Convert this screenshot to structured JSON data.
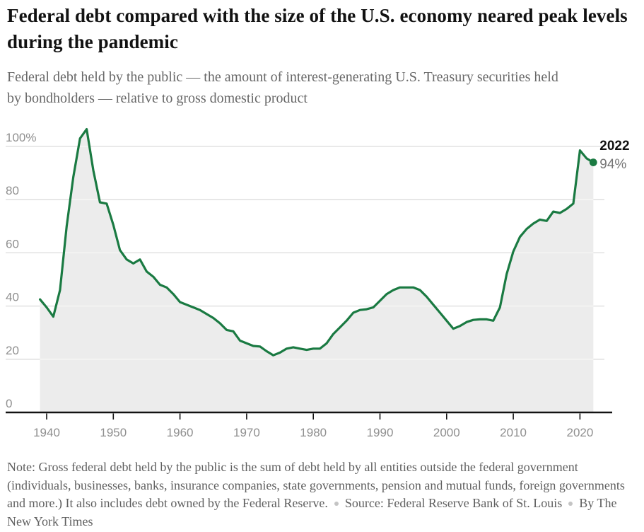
{
  "header": {
    "title": "Federal debt compared with the size of the U.S. economy neared peak levels during the pandemic",
    "subtitle": "Federal debt held by the public — the amount of interest-generating U.S. Treasury securities held by bondholders — relative to gross domestic product"
  },
  "footer": {
    "note": "Note: Gross federal debt held by the public is the sum of debt held by all entities outside the federal government (individuals, businesses, banks, insurance companies, state governments, pension and mutual funds, foreign governments and more.) It also includes debt owned by the Federal Reserve.",
    "source": "Source: Federal Reserve Bank of St. Louis",
    "byline": "By The New York Times"
  },
  "chart_data": {
    "type": "area",
    "series_name": "Federal debt held by the public as a share of gross domestic product (%)",
    "years": [
      1939,
      1940,
      1941,
      1942,
      1943,
      1944,
      1945,
      1946,
      1947,
      1948,
      1949,
      1950,
      1951,
      1952,
      1953,
      1954,
      1955,
      1956,
      1957,
      1958,
      1959,
      1960,
      1961,
      1962,
      1963,
      1964,
      1965,
      1966,
      1967,
      1968,
      1969,
      1970,
      1971,
      1972,
      1973,
      1974,
      1975,
      1976,
      1977,
      1978,
      1979,
      1980,
      1981,
      1982,
      1983,
      1984,
      1985,
      1986,
      1987,
      1988,
      1989,
      1990,
      1991,
      1992,
      1993,
      1994,
      1995,
      1996,
      1997,
      1998,
      1999,
      2000,
      2001,
      2002,
      2003,
      2004,
      2005,
      2006,
      2007,
      2008,
      2009,
      2010,
      2011,
      2012,
      2013,
      2014,
      2015,
      2016,
      2017,
      2018,
      2019,
      2020,
      2021,
      2022
    ],
    "values": [
      42.5,
      39.5,
      36,
      46,
      70,
      88.5,
      103,
      106.5,
      91,
      79,
      78.5,
      70.5,
      61,
      57.5,
      56,
      57.5,
      53,
      51,
      48,
      47,
      44.5,
      41.5,
      40.5,
      39.5,
      38.5,
      37,
      35.5,
      33.5,
      31,
      30.5,
      27,
      26,
      25,
      24.8,
      23,
      21.5,
      22.5,
      24,
      24.5,
      24,
      23.5,
      24,
      24,
      26,
      29.5,
      32,
      34.5,
      37.5,
      38.5,
      38.8,
      39.5,
      42,
      44.5,
      46,
      47,
      47,
      47,
      46,
      43.5,
      40.5,
      37.5,
      34.5,
      31.5,
      32.5,
      34,
      34.8,
      35,
      35,
      34.5,
      39.5,
      52,
      60.5,
      66,
      69,
      71,
      72.5,
      72,
      75.5,
      75,
      76.5,
      78.5,
      98.5,
      95.5,
      94
    ],
    "xticks": [
      1940,
      1950,
      1960,
      1970,
      1980,
      1990,
      2000,
      2010,
      2020
    ],
    "yticks": [
      0,
      20,
      40,
      60,
      80,
      100
    ],
    "ytick_labels": [
      "0",
      "20",
      "40",
      "60",
      "80",
      "100%"
    ],
    "ylim": [
      0,
      110
    ],
    "grid": true,
    "legend": "none",
    "annotation": {
      "year": 2022,
      "value": 94,
      "year_label": "2022",
      "value_label": "94%"
    },
    "colors": {
      "line": "#1a7a42",
      "fill": "#ececec",
      "grid": "#dcdcdc",
      "grid_on_fill": "#f7f7f6",
      "axis": "#121212",
      "tick_label": "#8f8f8f",
      "annotation_year": "#121212",
      "annotation_value": "#757575"
    }
  }
}
